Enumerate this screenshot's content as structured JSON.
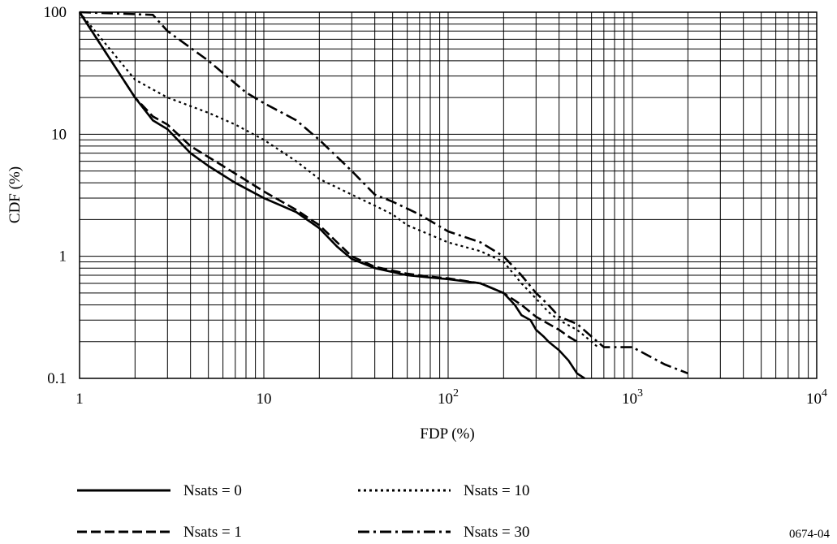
{
  "chart_data": {
    "type": "line",
    "title": "",
    "xlabel": "FDP (%)",
    "ylabel": "CDF (%)",
    "x_scale": "log",
    "y_scale": "log",
    "xlim": [
      1,
      10000
    ],
    "ylim": [
      0.1,
      100
    ],
    "grid": true,
    "legend_position": "bottom",
    "x_ticks": [
      {
        "value": 1,
        "base": "1",
        "exp": ""
      },
      {
        "value": 10,
        "base": "10",
        "exp": ""
      },
      {
        "value": 100,
        "base": "10",
        "exp": "2"
      },
      {
        "value": 1000,
        "base": "10",
        "exp": "3"
      },
      {
        "value": 10000,
        "base": "10",
        "exp": "4"
      }
    ],
    "y_ticks": [
      {
        "value": 0.1,
        "label": "0.1"
      },
      {
        "value": 1,
        "label": "1"
      },
      {
        "value": 10,
        "label": "10"
      },
      {
        "value": 100,
        "label": "100"
      }
    ],
    "series": [
      {
        "name": "Nsats = 0",
        "style": "solid-thick",
        "x": [
          1,
          2,
          2.5,
          3,
          4,
          5,
          7,
          10,
          15,
          20,
          25,
          30,
          40,
          60,
          80,
          100,
          150,
          200,
          230,
          250,
          280,
          300,
          330,
          350,
          400,
          450,
          500,
          550
        ],
        "y": [
          100,
          20,
          13,
          11,
          7,
          5.5,
          4,
          3,
          2.3,
          1.7,
          1.2,
          0.95,
          0.8,
          0.7,
          0.67,
          0.65,
          0.6,
          0.5,
          0.4,
          0.33,
          0.3,
          0.25,
          0.22,
          0.2,
          0.17,
          0.14,
          0.11,
          0.1
        ]
      },
      {
        "name": "Nsats = 1",
        "style": "dashed",
        "x": [
          1,
          2,
          2.5,
          3,
          4,
          6,
          8,
          10,
          15,
          20,
          25,
          30,
          40,
          60,
          80,
          100,
          150,
          200,
          250,
          300,
          350,
          400,
          450,
          500
        ],
        "y": [
          100,
          20,
          14,
          12,
          8,
          5.5,
          4.2,
          3.4,
          2.4,
          1.8,
          1.3,
          1.0,
          0.82,
          0.72,
          0.68,
          0.66,
          0.6,
          0.5,
          0.4,
          0.32,
          0.28,
          0.25,
          0.22,
          0.2
        ]
      },
      {
        "name": "Nsats = 10",
        "style": "dotted",
        "x": [
          1,
          2,
          3,
          5,
          7,
          10,
          15,
          20,
          30,
          40,
          50,
          60,
          80,
          100,
          150,
          200,
          250,
          300,
          350,
          400,
          500,
          600,
          650
        ],
        "y": [
          100,
          28,
          20,
          15,
          12,
          9,
          6,
          4.3,
          3.2,
          2.6,
          2.2,
          1.8,
          1.5,
          1.3,
          1.1,
          0.9,
          0.6,
          0.45,
          0.35,
          0.3,
          0.25,
          0.2,
          0.18
        ]
      },
      {
        "name": "Nsats = 30",
        "style": "dash-dot",
        "x": [
          1,
          2.5,
          3,
          5,
          8,
          10,
          15,
          20,
          30,
          40,
          50,
          70,
          100,
          150,
          200,
          250,
          300,
          350,
          400,
          500,
          600,
          700,
          1000,
          1500,
          2000
        ],
        "y": [
          100,
          95,
          70,
          40,
          22,
          18,
          13,
          9,
          5,
          3.2,
          2.8,
          2.2,
          1.6,
          1.3,
          1.0,
          0.7,
          0.5,
          0.4,
          0.32,
          0.28,
          0.22,
          0.18,
          0.18,
          0.13,
          0.11
        ]
      }
    ]
  },
  "legend": [
    {
      "label": "Nsats = 0",
      "style": "solid-thick"
    },
    {
      "label": "Nsats = 1",
      "style": "dashed"
    },
    {
      "label": "Nsats = 10",
      "style": "dotted"
    },
    {
      "label": "Nsats = 30",
      "style": "dash-dot"
    }
  ],
  "figure_id": "0674-04"
}
